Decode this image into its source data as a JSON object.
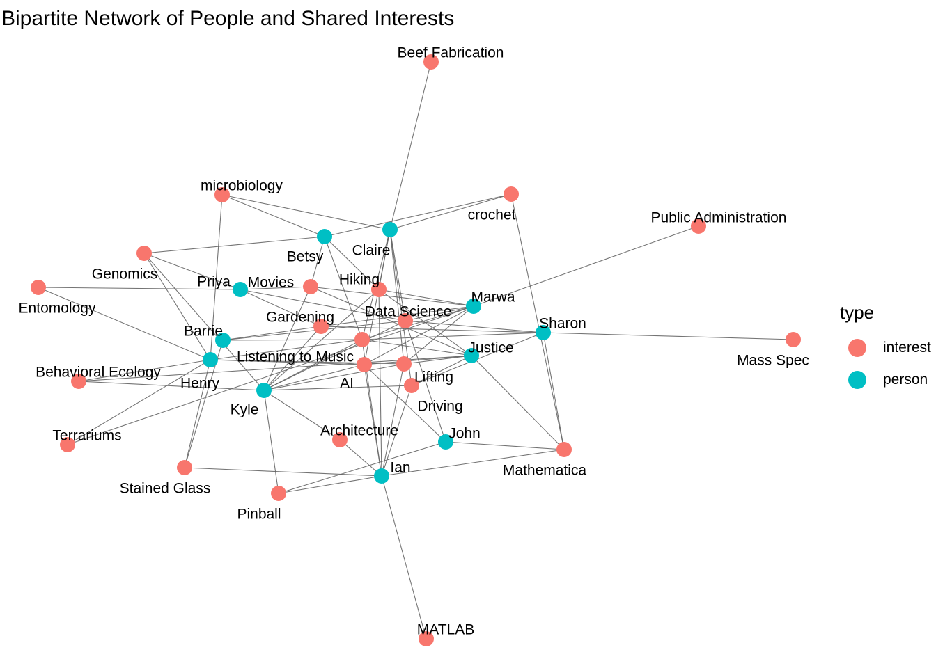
{
  "title": "Bipartite Network of People and Shared Interests",
  "legend": {
    "title": "type",
    "items": [
      {
        "label": "interest",
        "color": "#F8766D"
      },
      {
        "label": "person",
        "color": "#00BFC4"
      }
    ]
  },
  "nodes": [
    {
      "id": "Betsy",
      "type": "person"
    },
    {
      "id": "Claire",
      "type": "person"
    },
    {
      "id": "Priya",
      "type": "person"
    },
    {
      "id": "Marwa",
      "type": "person"
    },
    {
      "id": "Sharon",
      "type": "person"
    },
    {
      "id": "Barrie",
      "type": "person"
    },
    {
      "id": "Justice",
      "type": "person"
    },
    {
      "id": "Henry",
      "type": "person"
    },
    {
      "id": "Kyle",
      "type": "person"
    },
    {
      "id": "John",
      "type": "person"
    },
    {
      "id": "Ian",
      "type": "person"
    },
    {
      "id": "Beef Fabrication",
      "type": "interest"
    },
    {
      "id": "microbiology",
      "type": "interest"
    },
    {
      "id": "crochet",
      "type": "interest"
    },
    {
      "id": "Public Administration",
      "type": "interest"
    },
    {
      "id": "Genomics",
      "type": "interest"
    },
    {
      "id": "Entomology",
      "type": "interest"
    },
    {
      "id": "Movies",
      "type": "interest"
    },
    {
      "id": "Hiking",
      "type": "interest"
    },
    {
      "id": "Data Science",
      "type": "interest"
    },
    {
      "id": "Gardening",
      "type": "interest"
    },
    {
      "id": "Listening to Music",
      "type": "interest"
    },
    {
      "id": "Mass Spec",
      "type": "interest"
    },
    {
      "id": "Behavioral Ecology",
      "type": "interest"
    },
    {
      "id": "AI",
      "type": "interest"
    },
    {
      "id": "Lifting",
      "type": "interest"
    },
    {
      "id": "Driving",
      "type": "interest"
    },
    {
      "id": "Terrariums",
      "type": "interest"
    },
    {
      "id": "Architecture",
      "type": "interest"
    },
    {
      "id": "Mathematica",
      "type": "interest"
    },
    {
      "id": "Stained Glass",
      "type": "interest"
    },
    {
      "id": "Pinball",
      "type": "interest"
    },
    {
      "id": "MATLAB",
      "type": "interest"
    }
  ],
  "edges": [
    [
      "Claire",
      "Beef Fabrication"
    ],
    [
      "Betsy",
      "microbiology"
    ],
    [
      "Claire",
      "microbiology"
    ],
    [
      "Henry",
      "microbiology"
    ],
    [
      "Betsy",
      "crochet"
    ],
    [
      "Claire",
      "crochet"
    ],
    [
      "Mathematica",
      "crochet"
    ],
    [
      "Marwa",
      "Public Administration"
    ],
    [
      "Betsy",
      "Genomics"
    ],
    [
      "Priya",
      "Genomics"
    ],
    [
      "Henry",
      "Genomics"
    ],
    [
      "Kyle",
      "Genomics"
    ],
    [
      "Priya",
      "Entomology"
    ],
    [
      "Henry",
      "Entomology"
    ],
    [
      "Betsy",
      "Movies"
    ],
    [
      "Priya",
      "Movies"
    ],
    [
      "Kyle",
      "Movies"
    ],
    [
      "Marwa",
      "Movies"
    ],
    [
      "Justice",
      "Movies"
    ],
    [
      "Claire",
      "Hiking"
    ],
    [
      "Betsy",
      "Hiking"
    ],
    [
      "Marwa",
      "Hiking"
    ],
    [
      "Kyle",
      "Hiking"
    ],
    [
      "Justice",
      "Hiking"
    ],
    [
      "Ian",
      "Hiking"
    ],
    [
      "Priya",
      "Data Science"
    ],
    [
      "Marwa",
      "Data Science"
    ],
    [
      "Sharon",
      "Data Science"
    ],
    [
      "Kyle",
      "Data Science"
    ],
    [
      "Barrie",
      "Data Science"
    ],
    [
      "Claire",
      "Data Science"
    ],
    [
      "John",
      "Data Science"
    ],
    [
      "Priya",
      "Gardening"
    ],
    [
      "Barrie",
      "Gardening"
    ],
    [
      "Kyle",
      "Gardening"
    ],
    [
      "Marwa",
      "Gardening"
    ],
    [
      "Sharon",
      "Gardening"
    ],
    [
      "Henry",
      "Listening to Music"
    ],
    [
      "Barrie",
      "Listening to Music"
    ],
    [
      "Kyle",
      "Listening to Music"
    ],
    [
      "Marwa",
      "Listening to Music"
    ],
    [
      "Sharon",
      "Listening to Music"
    ],
    [
      "Justice",
      "Listening to Music"
    ],
    [
      "Claire",
      "Listening to Music"
    ],
    [
      "Ian",
      "Listening to Music"
    ],
    [
      "Betsy",
      "Listening to Music"
    ],
    [
      "Sharon",
      "Mass Spec"
    ],
    [
      "Henry",
      "Behavioral Ecology"
    ],
    [
      "Kyle",
      "Behavioral Ecology"
    ],
    [
      "Justice",
      "Behavioral Ecology"
    ],
    [
      "Henry",
      "AI"
    ],
    [
      "Kyle",
      "AI"
    ],
    [
      "Marwa",
      "AI"
    ],
    [
      "Justice",
      "AI"
    ],
    [
      "Claire",
      "AI"
    ],
    [
      "John",
      "AI"
    ],
    [
      "Ian",
      "AI"
    ],
    [
      "Kyle",
      "Lifting"
    ],
    [
      "Marwa",
      "Lifting"
    ],
    [
      "Justice",
      "Lifting"
    ],
    [
      "Claire",
      "Lifting"
    ],
    [
      "Ian",
      "Lifting"
    ],
    [
      "Henry",
      "Lifting"
    ],
    [
      "Kyle",
      "Driving"
    ],
    [
      "Justice",
      "Driving"
    ],
    [
      "Sharon",
      "Driving"
    ],
    [
      "Ian",
      "Driving"
    ],
    [
      "Claire",
      "Driving"
    ],
    [
      "Henry",
      "Terrariums"
    ],
    [
      "Marwa",
      "Terrariums"
    ],
    [
      "Kyle",
      "Architecture"
    ],
    [
      "Ian",
      "Architecture"
    ],
    [
      "Sharon",
      "Mathematica"
    ],
    [
      "John",
      "Mathematica"
    ],
    [
      "Ian",
      "Mathematica"
    ],
    [
      "Justice",
      "Mathematica"
    ],
    [
      "Henry",
      "Stained Glass"
    ],
    [
      "Barrie",
      "Stained Glass"
    ],
    [
      "Ian",
      "Stained Glass"
    ],
    [
      "Kyle",
      "Pinball"
    ],
    [
      "Ian",
      "Pinball"
    ],
    [
      "John",
      "Pinball"
    ],
    [
      "Ian",
      "MATLAB"
    ]
  ]
}
